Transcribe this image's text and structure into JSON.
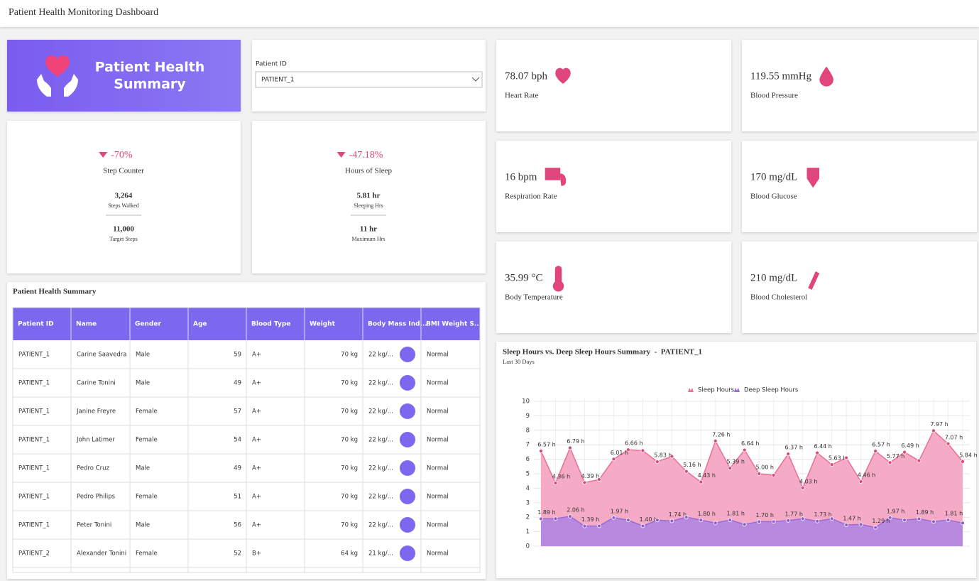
{
  "header": {
    "title": "Patient Health Monitoring Dashboard"
  },
  "banner": {
    "title_lines": [
      "Patient Health",
      "Summary"
    ]
  },
  "patient_filter": {
    "label": "Patient ID",
    "value": "PATIENT_1"
  },
  "step_card": {
    "change": "-70%",
    "label": "Step Counter",
    "stats": [
      {
        "value": "3,264",
        "label": "Steps Walked"
      },
      {
        "value": "11,000",
        "label": "Target Steps"
      }
    ]
  },
  "sleep_card": {
    "change": "-47.18%",
    "label": "Hours of Sleep",
    "stats": [
      {
        "value": "5.81 hr",
        "label": "Sleeping Hrs"
      },
      {
        "value": "11 hr",
        "label": "Maximum Hrs"
      }
    ]
  },
  "vitals": [
    {
      "value": "78.07 bph",
      "label": "Heart Rate"
    },
    {
      "value": "119.55 mmHg",
      "label": "Blood Pressure"
    },
    {
      "value": "16 bpm",
      "label": "Respiration Rate"
    },
    {
      "value": "170 mg/dL",
      "label": "Blood Glucose"
    },
    {
      "value": "35.99 °C",
      "label": "Body Temperature"
    },
    {
      "value": "210 mg/dL",
      "label": "Blood Cholesterol"
    }
  ],
  "table": {
    "title": "Patient Health Summary",
    "columns": [
      "Patient ID",
      "Name",
      "Gender",
      "Age",
      "Blood Type",
      "Weight",
      "Body Mass Ind...",
      "BMI Weight S..."
    ],
    "rows": [
      [
        "PATIENT_1",
        "Carine Saavedra",
        "Male",
        "59",
        "A+",
        "70 kg",
        "22 kg/...",
        "Normal"
      ],
      [
        "PATIENT_1",
        "Carine Tonini",
        "Male",
        "49",
        "A+",
        "70 kg",
        "22 kg/...",
        "Normal"
      ],
      [
        "PATIENT_1",
        "Janine Freyre",
        "Female",
        "57",
        "A+",
        "70 kg",
        "22 kg/...",
        "Normal"
      ],
      [
        "PATIENT_1",
        "John Latimer",
        "Female",
        "54",
        "A+",
        "70 kg",
        "22 kg/...",
        "Normal"
      ],
      [
        "PATIENT_1",
        "Pedro Cruz",
        "Male",
        "49",
        "A+",
        "70 kg",
        "22 kg/...",
        "Normal"
      ],
      [
        "PATIENT_1",
        "Pedro Philips",
        "Female",
        "51",
        "A+",
        "70 kg",
        "22 kg/...",
        "Normal"
      ],
      [
        "PATIENT_1",
        "Peter Tonini",
        "Male",
        "56",
        "A+",
        "70 kg",
        "22 kg/...",
        "Normal"
      ],
      [
        "PATIENT_2",
        "Alexander Tonini",
        "Female",
        "52",
        "B+",
        "64 kg",
        "21 kg/...",
        "Normal"
      ]
    ]
  },
  "chart_data": {
    "type": "area",
    "title": "Sleep Hours vs. Deep Sleep Hours Summary  -  PATIENT_1",
    "subtitle": "Last 30 Days",
    "ylim": [
      0,
      10
    ],
    "yticks": [
      0,
      1,
      2,
      3,
      4,
      5,
      6,
      7,
      8,
      9,
      10
    ],
    "grid": true,
    "legend": "top",
    "series": [
      {
        "name": "Sleep Hours",
        "color": "#f4a6c2",
        "values": [
          6.57,
          4.36,
          6.79,
          4.39,
          4.6,
          6.01,
          6.66,
          6.6,
          5.83,
          6.2,
          5.16,
          4.43,
          7.26,
          5.39,
          6.64,
          5.0,
          4.9,
          6.37,
          4.03,
          6.44,
          5.63,
          6.1,
          4.46,
          6.57,
          5.77,
          6.49,
          5.9,
          7.97,
          7.07,
          5.84
        ],
        "value_labels": [
          "6.57 h",
          "4.36 h",
          "6.79 h",
          "4.39 h",
          null,
          "6.01 h",
          "6.66 h",
          null,
          "5.83 h",
          null,
          "5.16 h",
          "4.43 h",
          "7.26 h",
          "5.39 h",
          "6.64 h",
          "5.00 h",
          null,
          "6.37 h",
          "4.03 h",
          "6.44 h",
          "5.63 h",
          null,
          "4.46 h",
          "6.57 h",
          "5.77 h",
          "6.49 h",
          null,
          "7.97 h",
          "7.07 h",
          "5.84 h"
        ]
      },
      {
        "name": "Deep Sleep Hours",
        "color": "#b488e0",
        "values": [
          1.89,
          1.9,
          2.06,
          1.39,
          1.4,
          1.97,
          1.8,
          1.4,
          1.8,
          1.74,
          2.0,
          1.8,
          1.6,
          1.81,
          1.5,
          1.7,
          1.7,
          1.77,
          1.9,
          1.73,
          1.9,
          1.47,
          1.5,
          1.29,
          1.97,
          1.8,
          1.89,
          1.7,
          1.81,
          1.6
        ],
        "value_labels": [
          "1.89 h",
          null,
          "2.06 h",
          "1.39 h",
          null,
          "1.97 h",
          null,
          "1.40 h",
          null,
          "1.74 h",
          null,
          "1.80 h",
          null,
          "1.81 h",
          null,
          "1.70 h",
          null,
          "1.77 h",
          null,
          "1.73 h",
          null,
          "1.47 h",
          null,
          "1.29 h",
          "1.97 h",
          null,
          "1.89 h",
          null,
          "1.81 h",
          null
        ]
      }
    ]
  }
}
